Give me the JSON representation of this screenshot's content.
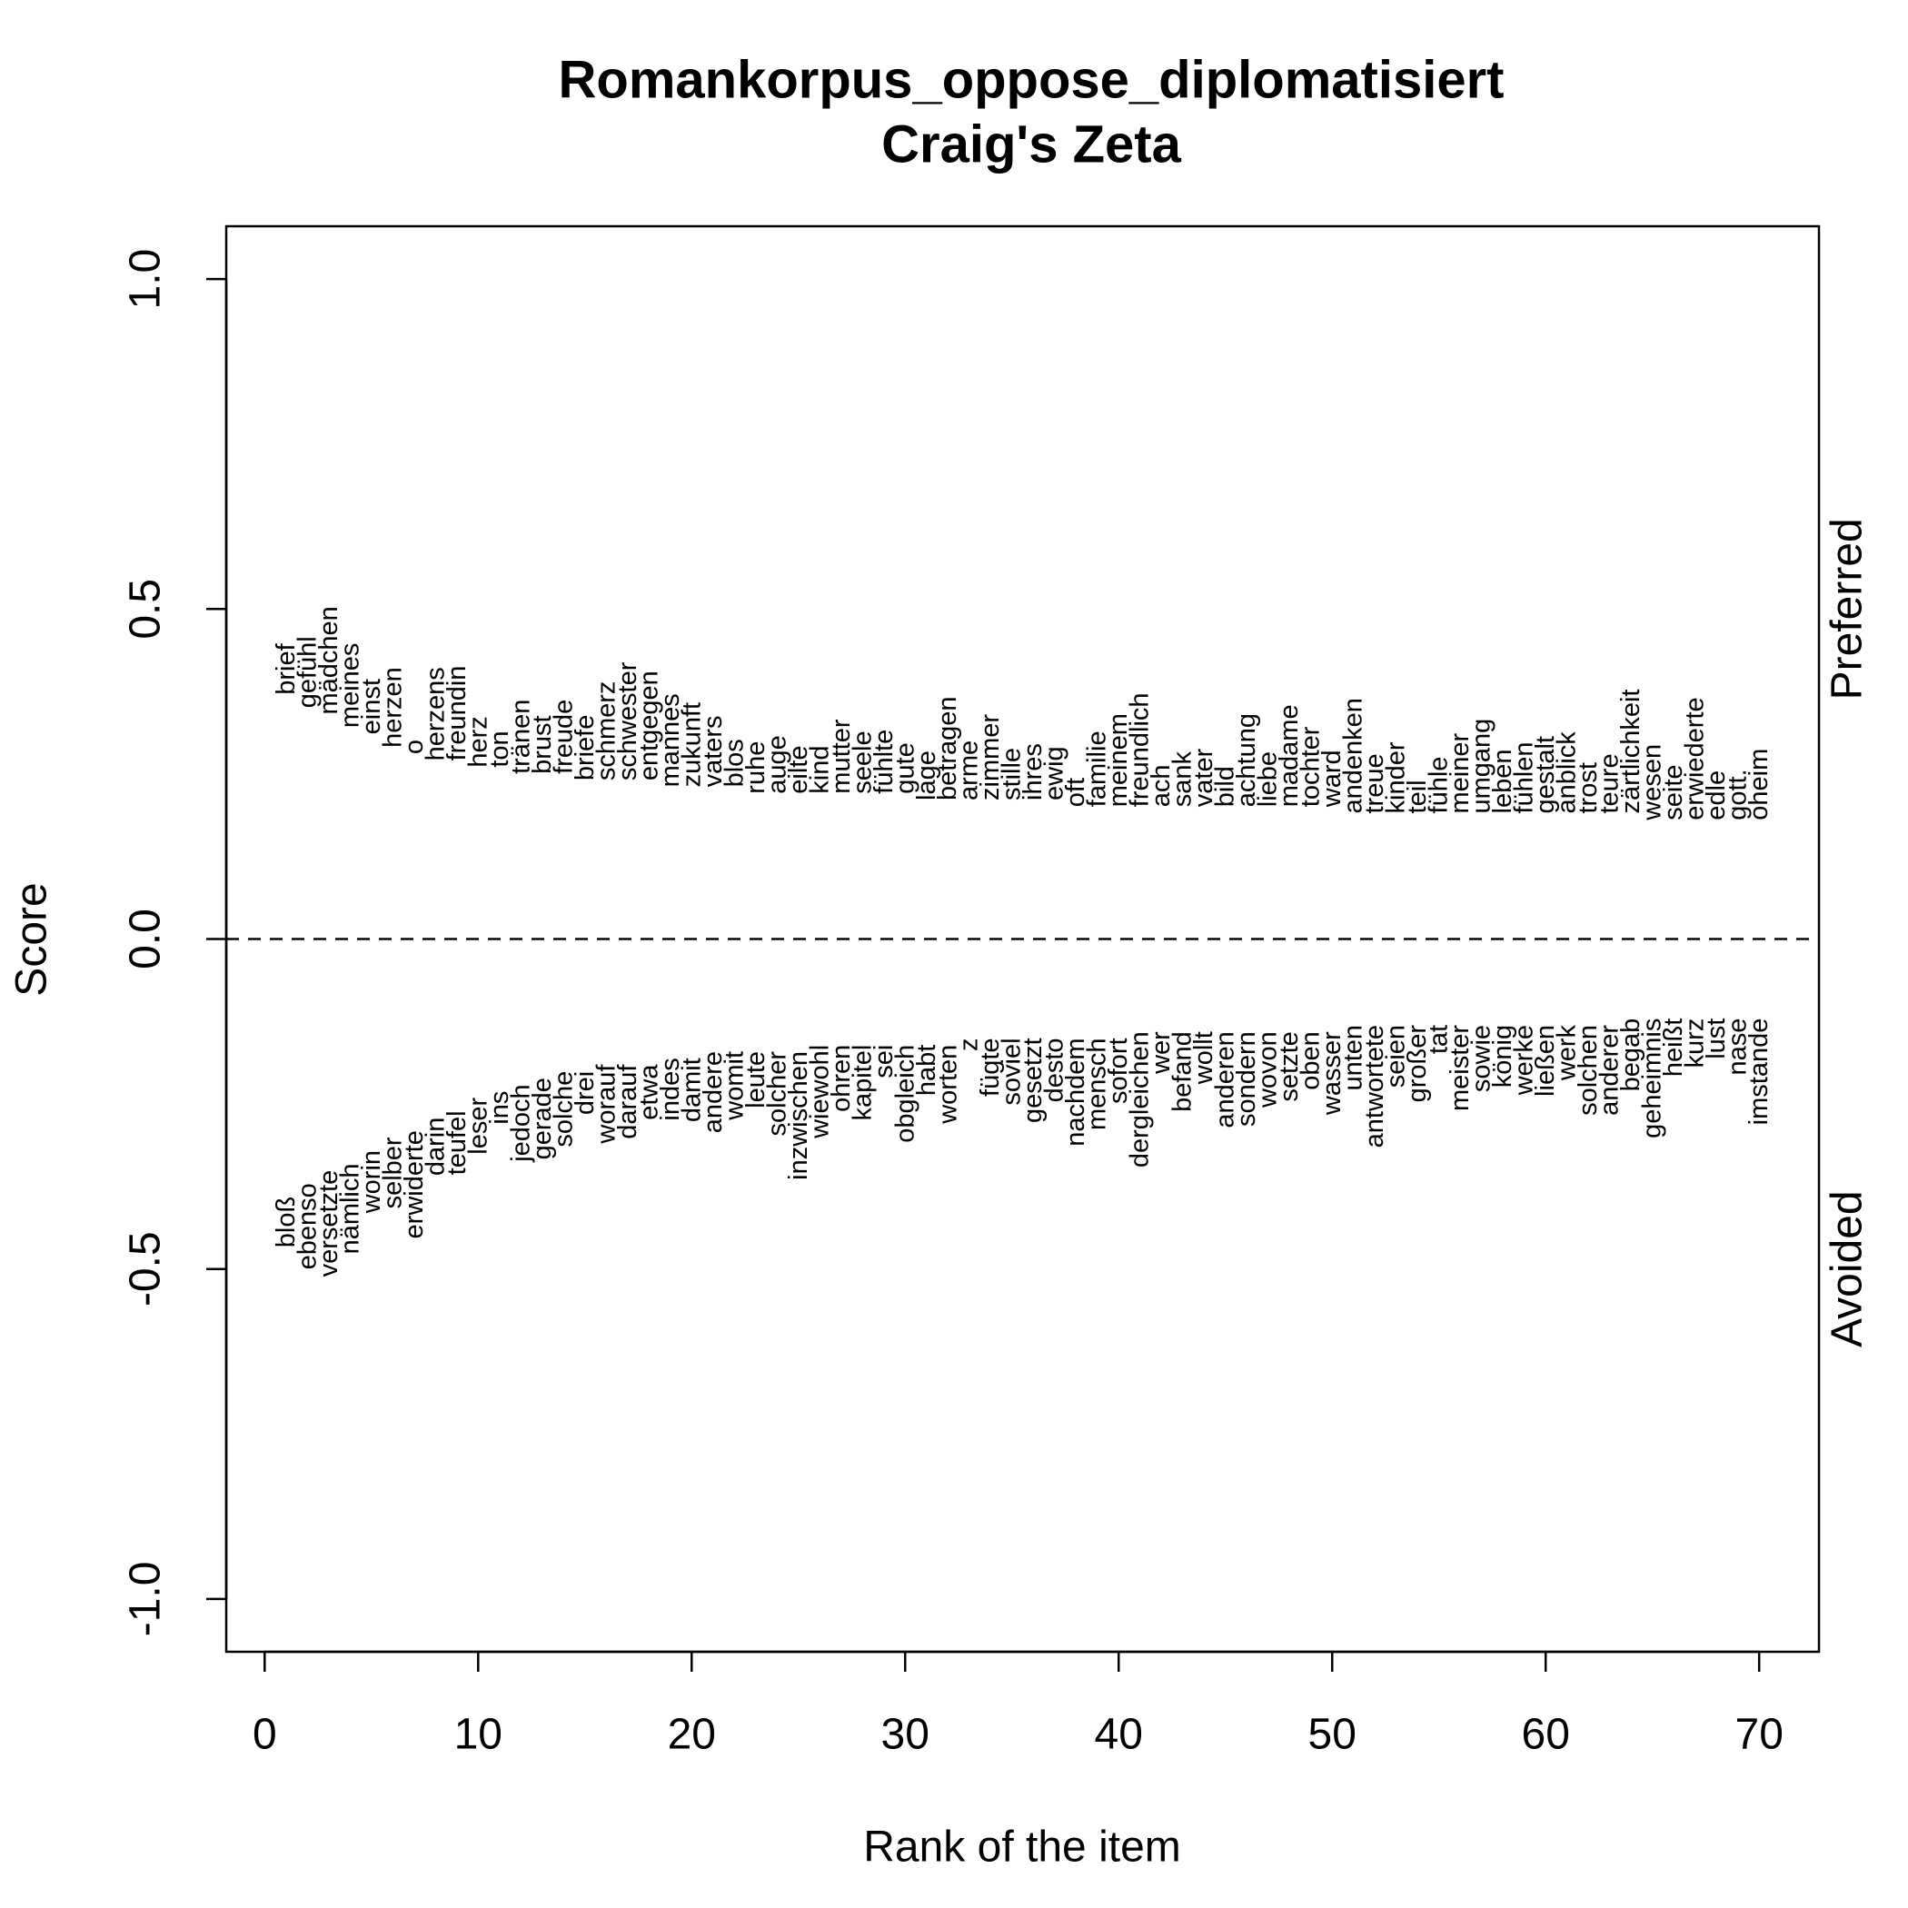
{
  "chart_data": {
    "type": "text-scatter",
    "title": "Romankorpus_oppose_diplomatisiert",
    "subtitle": "Craig's Zeta",
    "xlabel": "Rank of the item",
    "ylabel": "Score",
    "xlim": [
      -1.8,
      72.8
    ],
    "ylim": [
      -1.08,
      1.08
    ],
    "xticks": [
      0,
      10,
      20,
      30,
      40,
      50,
      60,
      70
    ],
    "yticks": [
      {
        "value": -1,
        "label": "-1.0"
      },
      {
        "value": -0.5,
        "label": "-0.5"
      },
      {
        "value": 0,
        "label": "0.0"
      },
      {
        "value": 0.5,
        "label": "0.5"
      },
      {
        "value": 1,
        "label": "1.0"
      }
    ],
    "reference_line": 0,
    "color": "#000000",
    "series": [
      {
        "name": "Preferred",
        "x": [
          1,
          2,
          3,
          4,
          5,
          6,
          7,
          8,
          9,
          10,
          11,
          12,
          13,
          14,
          15,
          16,
          17,
          18,
          19,
          20,
          21,
          22,
          23,
          24,
          25,
          26,
          27,
          28,
          29,
          30,
          31,
          32,
          33,
          34,
          35,
          36,
          37,
          38,
          39,
          40,
          41,
          42,
          43,
          44,
          45,
          46,
          47,
          48,
          49,
          50,
          51,
          52,
          53,
          54,
          55,
          56,
          57,
          58,
          59,
          60,
          61,
          62,
          63,
          64,
          65,
          66,
          67,
          68,
          69,
          70
        ],
        "labels": [
          "brief",
          "gefühl",
          "mädchen",
          "meines",
          "einst",
          "herzen",
          "o",
          "herzens",
          "freundin",
          "herz",
          "ton",
          "tränen",
          "brust",
          "freude",
          "briefe",
          "schmerz",
          "schwester",
          "entgegen",
          "mannes",
          "zukunft",
          "vaters",
          "blos",
          "ruhe",
          "auge",
          "eilte",
          "kind",
          "mutter",
          "seele",
          "fühlte",
          "gute",
          "lage",
          "betragen",
          "arme",
          "zimmer",
          "stille",
          "ihres",
          "ewig",
          "oft",
          "familie",
          "meinem",
          "freundlich",
          "ach",
          "sank",
          "vater",
          "bild",
          "achtung",
          "liebe",
          "madame",
          "tochter",
          "ward",
          "andenken",
          "treue",
          "kinder",
          "teil",
          "fühle",
          "meiner",
          "umgang",
          "leben",
          "fühlen",
          "gestalt",
          "anblick",
          "trost",
          "teure",
          "zärtlichkeit",
          "wesen",
          "seite",
          "erwiederte",
          "edle",
          "gott.",
          "oheim"
        ],
        "values": [
          0.37,
          0.35,
          0.34,
          0.32,
          0.31,
          0.29,
          0.28,
          0.27,
          0.27,
          0.26,
          0.26,
          0.25,
          0.25,
          0.25,
          0.24,
          0.24,
          0.24,
          0.24,
          0.23,
          0.23,
          0.23,
          0.23,
          0.22,
          0.22,
          0.22,
          0.22,
          0.22,
          0.22,
          0.22,
          0.22,
          0.21,
          0.21,
          0.21,
          0.21,
          0.21,
          0.21,
          0.21,
          0.2,
          0.2,
          0.2,
          0.2,
          0.2,
          0.2,
          0.2,
          0.2,
          0.2,
          0.2,
          0.2,
          0.2,
          0.2,
          0.19,
          0.19,
          0.19,
          0.19,
          0.19,
          0.19,
          0.19,
          0.19,
          0.19,
          0.19,
          0.19,
          0.19,
          0.19,
          0.19,
          0.18,
          0.18,
          0.18,
          0.18,
          0.18,
          0.18
        ]
      },
      {
        "name": "Avoided",
        "x": [
          1,
          2,
          3,
          4,
          5,
          6,
          7,
          8,
          9,
          10,
          11,
          12,
          13,
          14,
          15,
          16,
          17,
          18,
          19,
          20,
          21,
          22,
          23,
          24,
          25,
          26,
          27,
          28,
          29,
          30,
          31,
          32,
          33,
          34,
          35,
          36,
          37,
          38,
          39,
          40,
          41,
          42,
          43,
          44,
          45,
          46,
          47,
          48,
          49,
          50,
          51,
          52,
          53,
          54,
          55,
          56,
          57,
          58,
          59,
          60,
          61,
          62,
          63,
          64,
          65,
          66,
          67,
          68,
          69,
          70
        ],
        "labels": [
          "bloß",
          "ebenso",
          "versetzte",
          "nämlich",
          "worin",
          "selber",
          "erwiderte",
          "darin",
          "teufel",
          "leser",
          "ins",
          "jedoch",
          "gerade",
          "solche",
          "drei",
          "worauf",
          "darauf",
          "etwa",
          "indes",
          "damit",
          "andere",
          "womit",
          "leute",
          "solcher",
          "inzwischen",
          "wiewohl",
          "ohren",
          "kapitel",
          "sei",
          "obgleich",
          "habt",
          "worten",
          "z",
          "fügte",
          "soviel",
          "gesetzt",
          "desto",
          "nachdem",
          "mensch",
          "sofort",
          "dergleichen",
          "wer",
          "befand",
          "wollt",
          "anderen",
          "sondern",
          "wovon",
          "setzte",
          "oben",
          "wasser",
          "unten",
          "antwortete",
          "seien",
          "großer",
          "tat",
          "meister",
          "sowie",
          "könig",
          "werke",
          "ließen",
          "werk",
          "solchen",
          "anderer",
          "begab",
          "geheimnis",
          "heißt",
          "kurz",
          "lust",
          "nase",
          "imstande"
        ],
        "values": [
          -0.39,
          -0.37,
          -0.35,
          -0.34,
          -0.32,
          -0.3,
          -0.29,
          -0.27,
          -0.26,
          -0.24,
          -0.23,
          -0.22,
          -0.21,
          -0.2,
          -0.2,
          -0.19,
          -0.19,
          -0.19,
          -0.18,
          -0.18,
          -0.17,
          -0.17,
          -0.17,
          -0.17,
          -0.17,
          -0.16,
          -0.16,
          -0.16,
          -0.16,
          -0.16,
          -0.16,
          -0.16,
          -0.15,
          -0.15,
          -0.15,
          -0.15,
          -0.15,
          -0.15,
          -0.15,
          -0.15,
          -0.14,
          -0.14,
          -0.14,
          -0.14,
          -0.14,
          -0.14,
          -0.14,
          -0.14,
          -0.14,
          -0.14,
          -0.13,
          -0.13,
          -0.13,
          -0.13,
          -0.13,
          -0.13,
          -0.13,
          -0.13,
          -0.13,
          -0.13,
          -0.13,
          -0.13,
          -0.13,
          -0.12,
          -0.12,
          -0.12,
          -0.12,
          -0.12,
          -0.12,
          -0.12
        ]
      }
    ]
  }
}
